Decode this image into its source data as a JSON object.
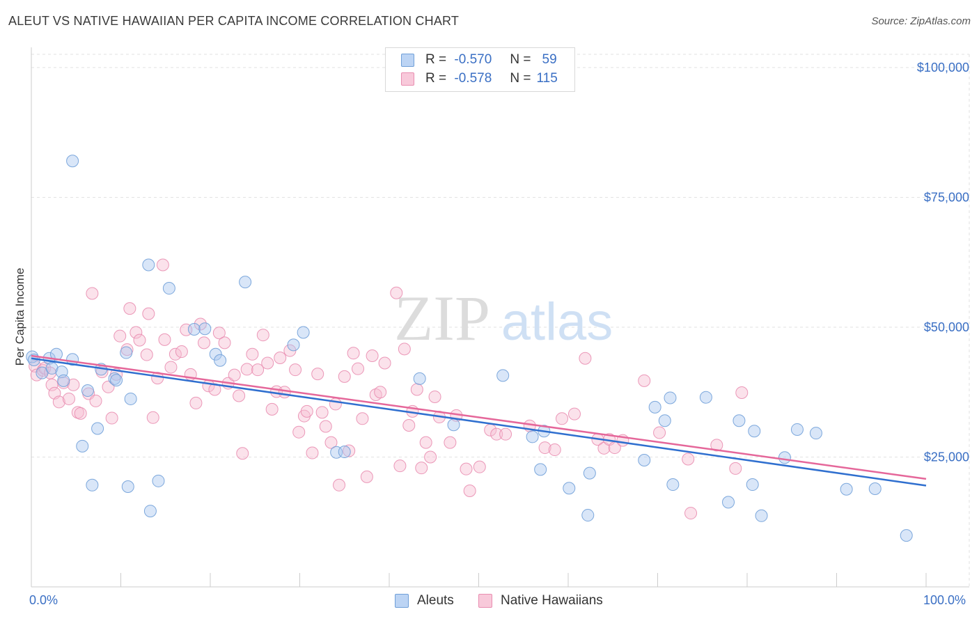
{
  "header": {
    "title": "ALEUT VS NATIVE HAWAIIAN PER CAPITA INCOME CORRELATION CHART",
    "source": "Source: ZipAtlas.com"
  },
  "watermark": {
    "zip": "ZIP",
    "atlas": "atlas"
  },
  "legend": {
    "aleut": {
      "r_label": "R =",
      "r_value": "-0.570",
      "n_label": "N =",
      "n_value": "59"
    },
    "hawaiian": {
      "r_label": "R =",
      "r_value": "-0.578",
      "n_label": "N =",
      "n_value": "115"
    }
  },
  "bottom_legend": {
    "aleut": "Aleuts",
    "hawaiian": "Native Hawaiians"
  },
  "colors": {
    "aleut_fill": "#aac8f0",
    "aleut_stroke": "#6f9fd8",
    "aleut_line": "#2f6fcf",
    "hawaiian_fill": "#f6bfd2",
    "hawaiian_stroke": "#e98db0",
    "hawaiian_line": "#e5679a",
    "axis_label": "#3a6fc4",
    "grid": "#e2e2e2"
  },
  "chart_data": {
    "type": "scatter",
    "title": "ALEUT VS NATIVE HAWAIIAN PER CAPITA INCOME CORRELATION CHART",
    "xlabel": "",
    "ylabel": "Per Capita Income",
    "xlim": [
      0,
      100
    ],
    "ylim": [
      0,
      105000
    ],
    "x_tick_labels": [
      "0.0%",
      "100.0%"
    ],
    "y_ticks": [
      25000,
      50000,
      75000,
      100000
    ],
    "y_tick_labels": [
      "$25,000",
      "$50,000",
      "$75,000",
      "$100,000"
    ],
    "grid": true,
    "legend_position": "top-center",
    "series": [
      {
        "name": "Aleuts",
        "trend": {
          "x": [
            0,
            100
          ],
          "y": [
            44000,
            19500
          ]
        },
        "points": [
          [
            0.1,
            44300
          ],
          [
            0.3,
            43700
          ],
          [
            1.2,
            41200
          ],
          [
            2.0,
            44000
          ],
          [
            2.3,
            42100
          ],
          [
            2.8,
            44800
          ],
          [
            3.4,
            41400
          ],
          [
            3.6,
            39700
          ],
          [
            4.6,
            82000
          ],
          [
            4.6,
            43800
          ],
          [
            5.7,
            27100
          ],
          [
            6.3,
            37800
          ],
          [
            6.8,
            19600
          ],
          [
            7.4,
            30500
          ],
          [
            7.8,
            41900
          ],
          [
            9.3,
            40100
          ],
          [
            9.5,
            39800
          ],
          [
            10.6,
            45100
          ],
          [
            10.8,
            19300
          ],
          [
            11.1,
            36200
          ],
          [
            13.3,
            14600
          ],
          [
            13.1,
            62000
          ],
          [
            14.2,
            20400
          ],
          [
            15.4,
            57500
          ],
          [
            18.2,
            49600
          ],
          [
            19.4,
            49700
          ],
          [
            20.6,
            44800
          ],
          [
            21.1,
            43600
          ],
          [
            23.9,
            58700
          ],
          [
            29.3,
            46600
          ],
          [
            30.4,
            49000
          ],
          [
            34.1,
            25900
          ],
          [
            35.0,
            26000
          ],
          [
            43.4,
            40100
          ],
          [
            47.2,
            31200
          ],
          [
            52.7,
            40700
          ],
          [
            56.0,
            28900
          ],
          [
            56.9,
            22600
          ],
          [
            57.3,
            30000
          ],
          [
            60.1,
            19000
          ],
          [
            62.2,
            13800
          ],
          [
            62.4,
            21900
          ],
          [
            68.5,
            24400
          ],
          [
            69.7,
            34600
          ],
          [
            70.8,
            32000
          ],
          [
            71.4,
            36400
          ],
          [
            71.7,
            19700
          ],
          [
            75.4,
            36500
          ],
          [
            77.9,
            16300
          ],
          [
            79.1,
            32000
          ],
          [
            80.6,
            19700
          ],
          [
            80.8,
            30000
          ],
          [
            81.6,
            13700
          ],
          [
            84.2,
            24900
          ],
          [
            85.6,
            30300
          ],
          [
            87.7,
            29600
          ],
          [
            91.1,
            18800
          ],
          [
            94.3,
            18900
          ],
          [
            97.8,
            9900
          ]
        ]
      },
      {
        "name": "Native Hawaiians",
        "trend": {
          "x": [
            0,
            100
          ],
          "y": [
            44500,
            20800
          ]
        },
        "points": [
          [
            0.4,
            42500
          ],
          [
            0.6,
            40800
          ],
          [
            1.3,
            41700
          ],
          [
            1.5,
            42100
          ],
          [
            2.1,
            41200
          ],
          [
            2.3,
            38900
          ],
          [
            2.6,
            37300
          ],
          [
            3.1,
            35600
          ],
          [
            3.6,
            39300
          ],
          [
            4.2,
            36200
          ],
          [
            4.7,
            38900
          ],
          [
            5.2,
            33600
          ],
          [
            5.5,
            33400
          ],
          [
            6.4,
            37200
          ],
          [
            6.8,
            56500
          ],
          [
            7.2,
            35800
          ],
          [
            7.9,
            41400
          ],
          [
            8.6,
            38500
          ],
          [
            9.0,
            32500
          ],
          [
            9.5,
            40900
          ],
          [
            9.9,
            48300
          ],
          [
            10.7,
            45700
          ],
          [
            11.0,
            53600
          ],
          [
            11.7,
            49000
          ],
          [
            12.1,
            47500
          ],
          [
            12.9,
            44700
          ],
          [
            13.1,
            52600
          ],
          [
            13.6,
            32600
          ],
          [
            14.1,
            40200
          ],
          [
            14.7,
            62000
          ],
          [
            14.9,
            47600
          ],
          [
            15.6,
            42300
          ],
          [
            16.1,
            44800
          ],
          [
            16.8,
            45300
          ],
          [
            17.3,
            49500
          ],
          [
            17.8,
            40900
          ],
          [
            18.4,
            35400
          ],
          [
            18.9,
            50600
          ],
          [
            19.3,
            47000
          ],
          [
            19.8,
            38700
          ],
          [
            20.5,
            38000
          ],
          [
            21.0,
            48900
          ],
          [
            21.6,
            47000
          ],
          [
            22.0,
            39200
          ],
          [
            22.7,
            40800
          ],
          [
            23.2,
            36800
          ],
          [
            23.6,
            25700
          ],
          [
            24.1,
            41900
          ],
          [
            24.7,
            44800
          ],
          [
            25.3,
            41800
          ],
          [
            25.9,
            48500
          ],
          [
            26.4,
            43100
          ],
          [
            26.9,
            34200
          ],
          [
            27.4,
            37600
          ],
          [
            27.8,
            44100
          ],
          [
            28.3,
            37500
          ],
          [
            28.9,
            45500
          ],
          [
            29.5,
            41800
          ],
          [
            29.9,
            29800
          ],
          [
            30.5,
            32900
          ],
          [
            30.8,
            33800
          ],
          [
            31.4,
            25800
          ],
          [
            32.0,
            41000
          ],
          [
            32.5,
            33600
          ],
          [
            32.9,
            30900
          ],
          [
            33.5,
            27800
          ],
          [
            34.0,
            35200
          ],
          [
            34.4,
            19600
          ],
          [
            35.0,
            40500
          ],
          [
            35.5,
            26200
          ],
          [
            36.0,
            45000
          ],
          [
            36.5,
            42000
          ],
          [
            37.0,
            32400
          ],
          [
            37.5,
            21200
          ],
          [
            38.1,
            44500
          ],
          [
            38.5,
            37000
          ],
          [
            39.0,
            37500
          ],
          [
            39.5,
            43100
          ],
          [
            40.8,
            56600
          ],
          [
            41.2,
            23300
          ],
          [
            41.7,
            45800
          ],
          [
            42.2,
            31100
          ],
          [
            42.6,
            33800
          ],
          [
            43.1,
            38000
          ],
          [
            43.6,
            22900
          ],
          [
            44.1,
            27800
          ],
          [
            44.6,
            25000
          ],
          [
            45.1,
            36600
          ],
          [
            45.6,
            32700
          ],
          [
            46.8,
            27800
          ],
          [
            47.5,
            33000
          ],
          [
            48.6,
            22700
          ],
          [
            49.0,
            18500
          ],
          [
            50.1,
            23100
          ],
          [
            51.3,
            30200
          ],
          [
            52.0,
            29400
          ],
          [
            53.0,
            29400
          ],
          [
            55.7,
            31000
          ],
          [
            57.4,
            26800
          ],
          [
            58.5,
            26400
          ],
          [
            59.3,
            32400
          ],
          [
            60.7,
            33300
          ],
          [
            61.9,
            44000
          ],
          [
            63.3,
            28400
          ],
          [
            64.0,
            26700
          ],
          [
            64.6,
            28400
          ],
          [
            65.2,
            26800
          ],
          [
            66.1,
            28200
          ],
          [
            68.5,
            39700
          ],
          [
            70.2,
            29700
          ],
          [
            73.4,
            24600
          ],
          [
            73.7,
            14200
          ],
          [
            76.6,
            27300
          ],
          [
            78.7,
            22800
          ],
          [
            79.4,
            37400
          ]
        ]
      }
    ]
  }
}
